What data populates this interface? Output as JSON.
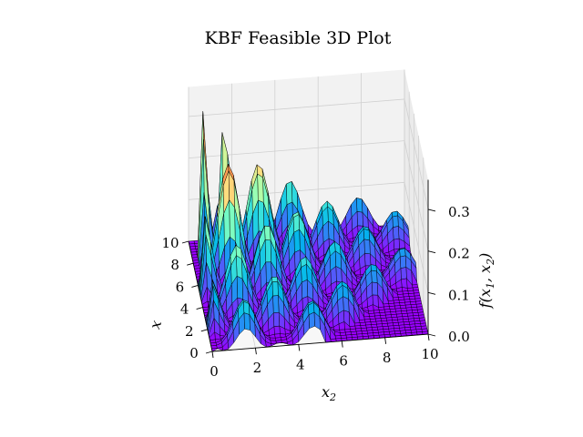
{
  "chart_data": {
    "type": "surface3d",
    "title": "KBF Feasible 3D Plot",
    "xlabel": "x",
    "ylabel": "x_2",
    "zlabel": "f(x_1, x_2)",
    "x_ticks": [
      "0",
      "2",
      "4",
      "6",
      "8",
      "10"
    ],
    "y_ticks": [
      "0",
      "2",
      "4",
      "6",
      "8",
      "10"
    ],
    "z_ticks": [
      "0.0",
      "0.1",
      "0.2",
      "0.3"
    ],
    "xlim": [
      0,
      10
    ],
    "ylim": [
      0,
      10
    ],
    "zlim": [
      0,
      0.35
    ],
    "colormap": "rainbow",
    "grid": true,
    "surface_peaks": [
      {
        "x1": 0.1,
        "x2": 0.15,
        "f": 0.36
      },
      {
        "x1": 1.6,
        "x2": 1.6,
        "f": 0.28
      },
      {
        "x1": 1.6,
        "x2": 3.1,
        "f": 0.25
      },
      {
        "x1": 1.6,
        "x2": 4.7,
        "f": 0.21
      },
      {
        "x1": 1.6,
        "x2": 6.3,
        "f": 0.18
      },
      {
        "x1": 1.6,
        "x2": 7.9,
        "f": 0.16
      },
      {
        "x1": 3.1,
        "x2": 3.1,
        "f": 0.22
      },
      {
        "x1": 4.7,
        "x2": 4.7,
        "f": 0.17
      },
      {
        "x1": 6.3,
        "x2": 6.3,
        "f": 0.14
      },
      {
        "x1": 7.9,
        "x2": 7.9,
        "f": 0.12
      }
    ]
  }
}
